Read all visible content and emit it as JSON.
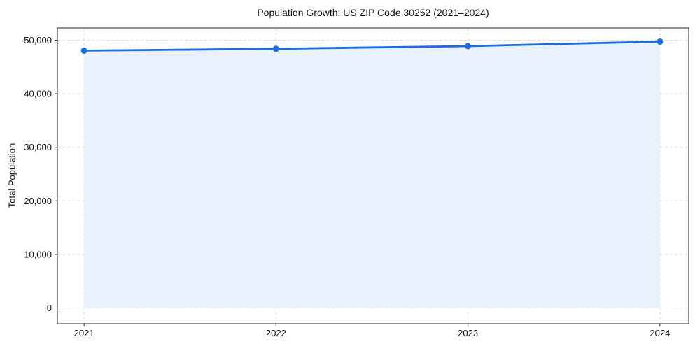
{
  "chart_data": {
    "type": "area",
    "title": "Population Growth: US ZIP Code 30252 (2021–2024)",
    "xlabel": "",
    "ylabel": "Total Population",
    "x": [
      2021,
      2022,
      2023,
      2024
    ],
    "series": [
      {
        "name": "Total Population",
        "values": [
          48050,
          48400,
          48900,
          49750
        ]
      }
    ],
    "xticks": {
      "values": [
        2021,
        2022,
        2023,
        2024
      ],
      "labels": [
        "2021",
        "2022",
        "2023",
        "2024"
      ]
    },
    "yticks": {
      "values": [
        0,
        10000,
        20000,
        30000,
        40000,
        50000
      ],
      "labels": [
        "0",
        "10,000",
        "20,000",
        "30,000",
        "40,000",
        "50,000"
      ]
    },
    "xlim": [
      2020.861,
      2024.15
    ],
    "ylim": [
      -2940,
      52290
    ],
    "grid": true,
    "grid_style": "dashed",
    "legend": "none",
    "marker": "circle",
    "colors": {
      "line": "#1a6ee0",
      "marker": "#1a6ee0",
      "area_fill": "#e9f1fc",
      "grid": "#d9d9d9",
      "spine": "#222222",
      "text": "#111111"
    }
  }
}
